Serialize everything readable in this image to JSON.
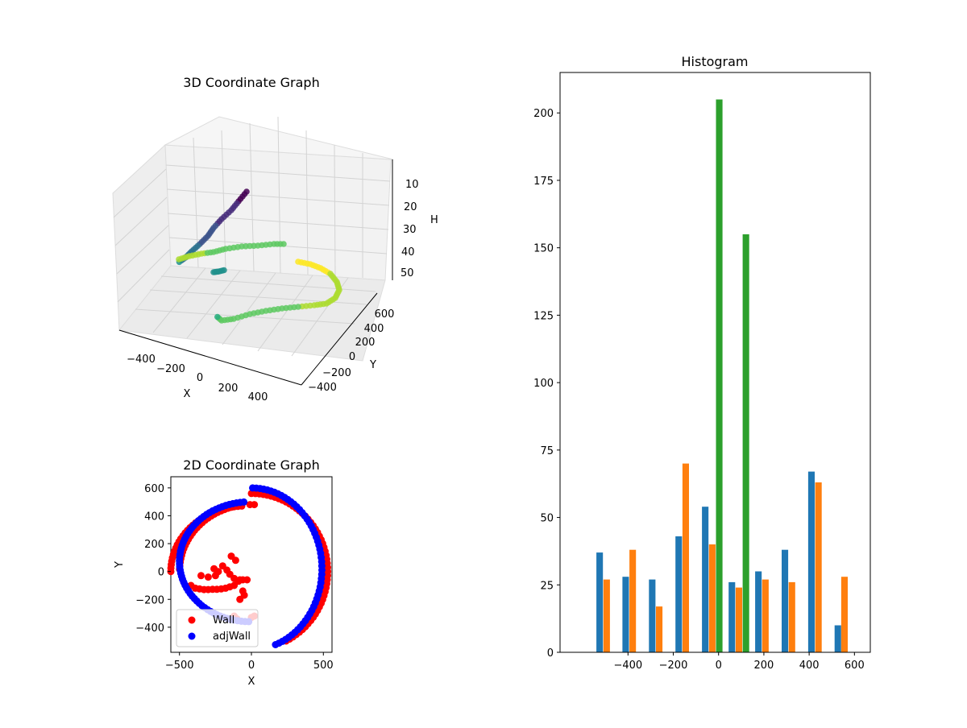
{
  "chart_data": [
    {
      "type": "scatter3d",
      "title": "3D Coordinate Graph",
      "xlabel": "X",
      "ylabel": "Y",
      "zlabel": "H",
      "x_ticks": [
        "−400",
        "−200",
        "0",
        "200",
        "400"
      ],
      "y_ticks": [
        "−400",
        "−200",
        "0",
        "200",
        "400",
        "600"
      ],
      "z_ticks": [
        "10",
        "20",
        "30",
        "40",
        "50"
      ],
      "z_inverted": true,
      "colormap": "viridis",
      "grid": true
    },
    {
      "type": "scatter",
      "title": "2D Coordinate Graph",
      "xlabel": "X",
      "ylabel": "Y",
      "xlim": [
        -560,
        560
      ],
      "ylim": [
        -580,
        680
      ],
      "x_ticks": [
        -500,
        0,
        500
      ],
      "y_ticks": [
        -400,
        -200,
        0,
        200,
        400,
        600
      ],
      "legend": "lower-left",
      "series": [
        {
          "name": "Wall",
          "color": "#ff0000"
        },
        {
          "name": "adjWall",
          "color": "#0000ff"
        }
      ]
    },
    {
      "type": "bar",
      "title": "Histogram",
      "xlim": [
        -700,
        670
      ],
      "ylim": [
        0,
        215
      ],
      "x_ticks": [
        -400,
        -200,
        0,
        200,
        400,
        600
      ],
      "y_ticks": [
        0,
        25,
        50,
        75,
        100,
        125,
        150,
        175,
        200
      ],
      "bar_width": 29,
      "series": [
        {
          "color": "#1f77b4",
          "x": [
            -525,
            -410,
            -293,
            -176,
            -59,
            59,
            176,
            293,
            410,
            527
          ],
          "values": [
            37,
            28,
            27,
            43,
            54,
            26,
            30,
            38,
            67,
            10
          ]
        },
        {
          "color": "#ff7f0e",
          "x": [
            -494,
            -379,
            -262,
            -145,
            -28,
            90,
            207,
            324,
            441,
            556
          ],
          "values": [
            27,
            38,
            17,
            70,
            40,
            24,
            27,
            26,
            63,
            28
          ]
        },
        {
          "color": "#2ca02c",
          "x": [
            3,
            121
          ],
          "values": [
            205,
            155
          ]
        }
      ]
    }
  ]
}
